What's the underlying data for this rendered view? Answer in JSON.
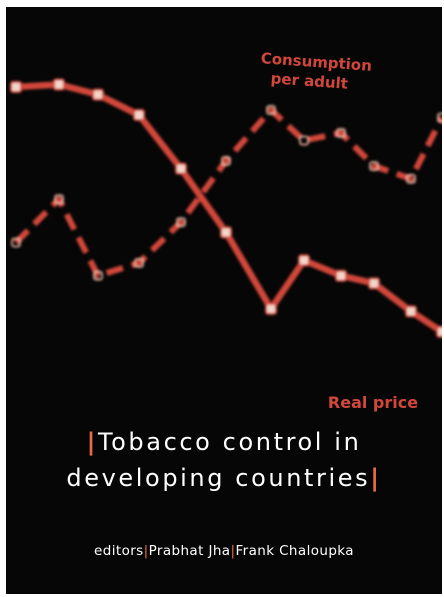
{
  "cover": {
    "title_line1": "Tobacco control in",
    "title_line2": "developing countries",
    "bar_char": "|",
    "editors_prefix": "editors",
    "editor1": "Prabhat Jha",
    "editor2": "Frank Chaloupka"
  },
  "colors": {
    "background": "#060606",
    "line_red": "#d2473b",
    "marker_fill": "#f3d6c8",
    "accent_bar": "#ea6a45",
    "text": "#ffffff"
  },
  "chart_data": {
    "type": "line",
    "title": "",
    "xlabel": "",
    "ylabel": "",
    "series": [
      {
        "name": "Real price",
        "style": "solid",
        "values": [
          100,
          101,
          97,
          89,
          68,
          43,
          13,
          32,
          26,
          23,
          12,
          4
        ]
      },
      {
        "name": "Consumption per adult",
        "style": "dashed",
        "values": [
          39,
          56,
          26,
          31,
          47,
          71,
          91,
          79,
          82,
          69,
          64,
          88
        ]
      }
    ]
  }
}
